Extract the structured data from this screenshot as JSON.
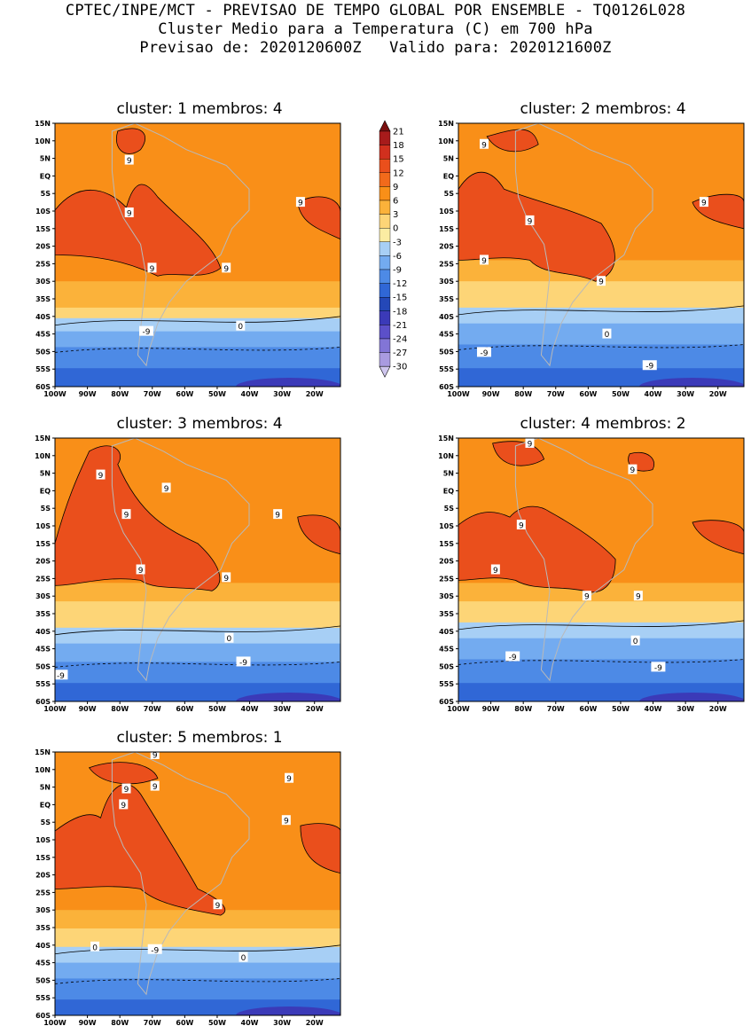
{
  "header": {
    "line1": "CPTEC/INPE/MCT - PREVISAO DE TEMPO GLOBAL POR ENSEMBLE - TQ0126L028",
    "line2": "Cluster Medio para a Temperatura (C) em 700 hPa",
    "line3": "Previsao de: 2020120600Z   Valido para: 2020121600Z"
  },
  "lat_labels": [
    "15N",
    "10N",
    "5N",
    "EQ",
    "5S",
    "10S",
    "15S",
    "20S",
    "25S",
    "30S",
    "35S",
    "40S",
    "45S",
    "50S",
    "55S",
    "60S"
  ],
  "lon_labels": [
    "100W",
    "90W",
    "80W",
    "70W",
    "60W",
    "50W",
    "40W",
    "30W",
    "20W"
  ],
  "colorbar": {
    "levels": [
      "21",
      "18",
      "15",
      "12",
      "9",
      "6",
      "3",
      "0",
      "-3",
      "-6",
      "-9",
      "-12",
      "-15",
      "-18",
      "-21",
      "-24",
      "-27",
      "-30"
    ],
    "colors": [
      "#7a0f0f",
      "#a71b1b",
      "#d1301e",
      "#ea4f1c",
      "#f26a1b",
      "#f98f18",
      "#fbb23a",
      "#fdd577",
      "#fbeca2",
      "#a7cff5",
      "#73abf0",
      "#4d8ae6",
      "#3067d6",
      "#2448b8",
      "#3b3ab8",
      "#5c50c9",
      "#8275d6",
      "#a99be0",
      "#cfc6ee"
    ]
  },
  "clusters": [
    {
      "title": "cluster: 1   membros: 4",
      "labels": [
        "9",
        "9",
        "9",
        "9",
        "9",
        "0",
        "-9"
      ]
    },
    {
      "title": "cluster: 2   membros: 4",
      "labels": [
        "9",
        "9",
        "9",
        "9",
        "9",
        "0",
        "-9",
        "-9"
      ]
    },
    {
      "title": "cluster: 3   membros: 4",
      "labels": [
        "9",
        "9",
        "9",
        "9",
        "9",
        "9",
        "0",
        "-9",
        "-9"
      ]
    },
    {
      "title": "cluster: 4   membros: 2",
      "labels": [
        "9",
        "9",
        "9",
        "9",
        "9",
        "9",
        "0",
        "-9",
        "-9"
      ]
    },
    {
      "title": "cluster: 5   membros: 1",
      "labels": [
        "9",
        "9",
        "9",
        "9",
        "9",
        "9",
        "9",
        "0",
        "0",
        "-9"
      ]
    }
  ]
}
